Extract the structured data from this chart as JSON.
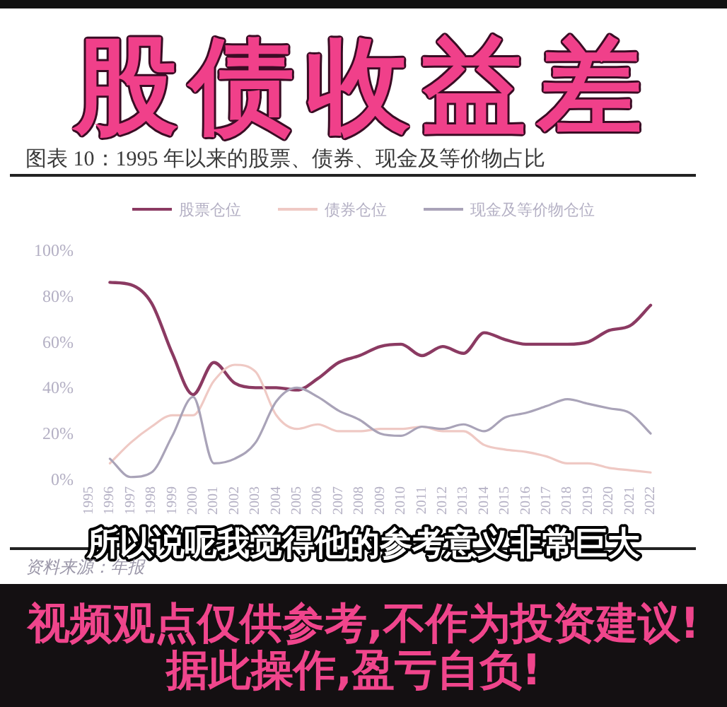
{
  "chart_data": {
    "type": "line",
    "title": "股债收益差",
    "subtitle": "图表 10：1995 年以来的股票、债券、现金及等价物占比",
    "annotations": [
      "所以说呢我觉得他的参考意义非常巨大",
      "资料来源：年报",
      "视频观点仅供参考,不作为投资建议!",
      "据此操作,盈亏自负!"
    ],
    "categories": [
      "1995",
      "1996",
      "1997",
      "1998",
      "1999",
      "2000",
      "2001",
      "2002",
      "2003",
      "2004",
      "2005",
      "2006",
      "2007",
      "2008",
      "2009",
      "2010",
      "2011",
      "2012",
      "2013",
      "2014",
      "2015",
      "2016",
      "2017",
      "2018",
      "2019",
      "2020",
      "2021",
      "2022"
    ],
    "series": [
      {
        "name": "股票仓位",
        "color": "#8b3a62",
        "values": [
          null,
          86,
          85,
          77,
          55,
          37,
          51,
          42,
          40,
          40,
          39,
          44,
          51,
          54,
          58,
          59,
          54,
          58,
          55,
          64,
          61,
          59,
          59,
          59,
          60,
          65,
          67,
          76
        ]
      },
      {
        "name": "债券仓位",
        "color": "#efc9c4",
        "values": [
          null,
          7,
          16,
          23,
          28,
          28,
          43,
          50,
          47,
          28,
          22,
          24,
          21,
          21,
          22,
          22,
          23,
          21,
          21,
          15,
          13,
          12,
          10,
          7,
          7,
          5,
          4,
          3
        ]
      },
      {
        "name": "现金及等价物仓位",
        "color": "#a9a3b8",
        "values": [
          null,
          9,
          1,
          3,
          19,
          36,
          7,
          9,
          16,
          34,
          40,
          36,
          30,
          26,
          20,
          19,
          23,
          22,
          24,
          21,
          27,
          29,
          32,
          35,
          33,
          31,
          29,
          20
        ]
      }
    ],
    "ylim": [
      0,
      100
    ],
    "yticks": [
      {
        "value": 0,
        "label": "0%"
      },
      {
        "value": 20,
        "label": "20%"
      },
      {
        "value": 40,
        "label": "40%"
      },
      {
        "value": 60,
        "label": "60%"
      },
      {
        "value": 80,
        "label": "80%"
      },
      {
        "value": 100,
        "label": "100%"
      }
    ],
    "legend": "top"
  }
}
